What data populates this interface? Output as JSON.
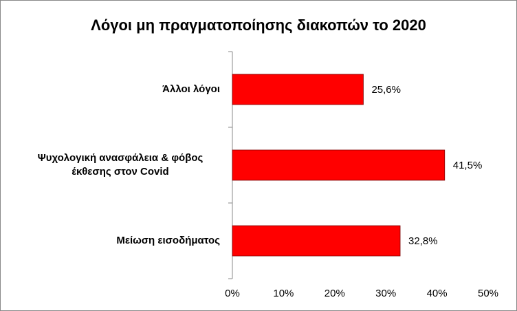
{
  "chart_data": {
    "type": "barh",
    "title": "Λόγοι μη πραγματοποίησης διακοπών το 2020",
    "categories": [
      "Άλλοι λόγοι",
      "Ψυχολογική ανασφάλεια & φόβος έκθεσης στον Covid",
      "Μείωση εισοδήματος"
    ],
    "values": [
      25.6,
      41.5,
      32.8
    ],
    "value_labels": [
      "25,6%",
      "41,5%",
      "32,8%"
    ],
    "color": "#ff0000",
    "xlim": [
      0,
      50
    ],
    "xticks": [
      {
        "value": 0,
        "label": "0%"
      },
      {
        "value": 10,
        "label": "10%"
      },
      {
        "value": 20,
        "label": "20%"
      },
      {
        "value": 30,
        "label": "30%"
      },
      {
        "value": 40,
        "label": "40%"
      },
      {
        "value": 50,
        "label": "50%"
      }
    ]
  }
}
